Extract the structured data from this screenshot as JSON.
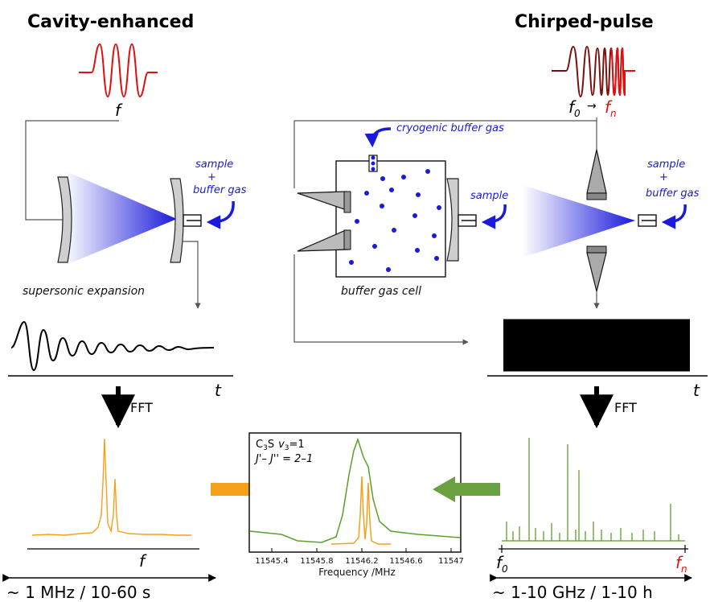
{
  "left_panel": {
    "title": "Cavity-enhanced",
    "frequency_label": "f",
    "sample_label_lines": [
      "sample",
      "+",
      "buffer gas"
    ],
    "expansion_label": "supersonic expansion",
    "time_axis_label": "t",
    "fft_label": "FFT",
    "freq_axis_label": "f",
    "summary": "~ 1 MHz / 10-60 s"
  },
  "middle_panel": {
    "buffer_gas_label": "cryogenic buffer gas",
    "sample_label": "sample",
    "cell_label": "buffer gas cell",
    "inset": {
      "molecule": "C",
      "molecule_sub": "3",
      "molecule_rest": "S",
      "mode": "v",
      "mode_sub": "3",
      "mode_value": "=1",
      "transition": "J'– J'' = 2–1",
      "xlabel": "Frequency /MHz",
      "xticks": [
        "11545.4",
        "11545.8",
        "11546.2",
        "11546.6",
        "11547"
      ]
    }
  },
  "right_panel": {
    "title": "Chirped-pulse",
    "f_start": "f",
    "f_start_sub": "0",
    "f_end": "f",
    "f_end_sub": "n",
    "arrow": "→",
    "sample_label_lines": [
      "sample",
      "+",
      "buffer gas"
    ],
    "time_axis_label": "t",
    "fft_label": "FFT",
    "freq_start": "f",
    "freq_start_sub": "0",
    "freq_end": "f",
    "freq_end_sub": "n",
    "summary": "~ 1-10 GHz / 1-10 h"
  },
  "colors": {
    "red": "#e01010",
    "blue": "#1a1adb",
    "orange": "#f5a01a",
    "green": "#5aa02a"
  }
}
